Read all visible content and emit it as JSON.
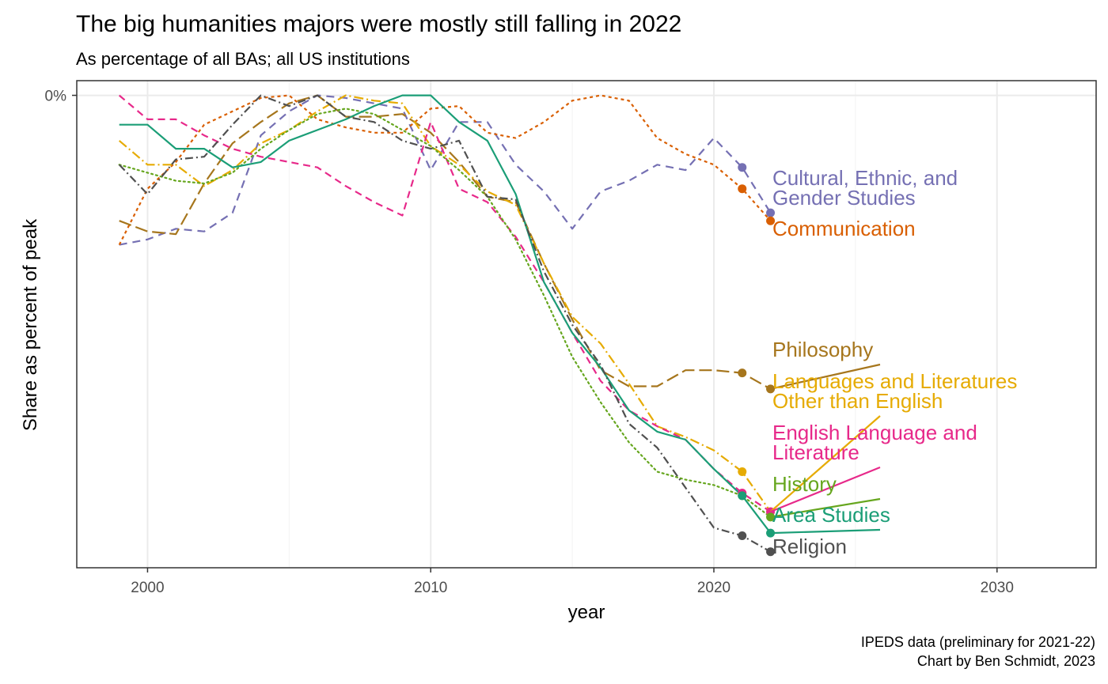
{
  "chart_data": {
    "type": "line",
    "title": "The big humanities majors were mostly still falling in 2022",
    "subtitle": "As percentage of all BAs; all US institutions",
    "xlabel": "year",
    "ylabel": "Share as percent of peak",
    "caption_lines": [
      "IPEDS data (preliminary for 2021-22)",
      "Chart by Ben Schmidt, 2023"
    ],
    "xlim": [
      1997.5,
      2033.5
    ],
    "ylim": [
      -17.7,
      0.55
    ],
    "x_ticks": [
      2000,
      2010,
      2020,
      2030
    ],
    "x_tick_labels": [
      "2000",
      "2010",
      "2020",
      "2030"
    ],
    "y_ticks": [
      0
    ],
    "y_tick_labels": [
      "0%"
    ],
    "grid": true,
    "legend": "none (direct labels at line ends)",
    "series": [
      {
        "name": "Cultural, Ethnic, and Gender Studies",
        "label_lines": [
          "Cultural, Ethnic, and",
          "Gender Studies"
        ],
        "color": "#7570b3",
        "dash": "10,7",
        "x": [
          1999,
          2000,
          2001,
          2002,
          2003,
          2004,
          2005,
          2006,
          2007,
          2008,
          2009,
          2010,
          2011,
          2012,
          2013,
          2014,
          2015,
          2016,
          2017,
          2018,
          2019,
          2020,
          2021,
          2022
        ],
        "y": [
          -5.6,
          -5.4,
          -5.0,
          -5.1,
          -4.4,
          -1.5,
          -0.6,
          0,
          -0.1,
          -0.3,
          -0.5,
          -2.8,
          -1.0,
          -1.0,
          -2.6,
          -3.6,
          -5.0,
          -3.6,
          -3.2,
          -2.6,
          -2.8,
          -1.6,
          -2.7,
          -4.4
        ]
      },
      {
        "name": "Communication",
        "label_lines": [
          "Communication"
        ],
        "color": "#d95f02",
        "dash": "4,4",
        "x": [
          1999,
          2000,
          2001,
          2002,
          2003,
          2004,
          2005,
          2006,
          2007,
          2008,
          2009,
          2010,
          2011,
          2012,
          2013,
          2014,
          2015,
          2016,
          2017,
          2018,
          2019,
          2020,
          2021,
          2022
        ],
        "y": [
          -5.6,
          -3.5,
          -2.5,
          -1.1,
          -0.6,
          -0.1,
          0,
          -0.9,
          -1.2,
          -1.4,
          -1.4,
          -0.5,
          -0.4,
          -1.4,
          -1.6,
          -1.0,
          -0.2,
          0,
          -0.2,
          -1.6,
          -2.2,
          -2.6,
          -3.5,
          -4.7
        ]
      },
      {
        "name": "Philosophy",
        "label_lines": [
          "Philosophy"
        ],
        "color": "#a6761d",
        "dash": "16,6",
        "x": [
          1999,
          2000,
          2001,
          2002,
          2003,
          2004,
          2005,
          2006,
          2007,
          2008,
          2009,
          2010,
          2011,
          2012,
          2013,
          2014,
          2015,
          2016,
          2017,
          2018,
          2019,
          2020,
          2021,
          2022
        ],
        "y": [
          -4.7,
          -5.1,
          -5.2,
          -3.3,
          -1.8,
          -1.0,
          -0.3,
          0,
          -0.8,
          -0.8,
          -0.7,
          -1.4,
          -2.5,
          -3.8,
          -4.0,
          -6.3,
          -8.4,
          -10.3,
          -10.9,
          -10.9,
          -10.3,
          -10.3,
          -10.4,
          -11.0
        ]
      },
      {
        "name": "Languages and Literatures Other than English",
        "label_lines": [
          "Languages and Literatures",
          "Other than English"
        ],
        "color": "#e6ab02",
        "dash": "12,4,2,4",
        "x": [
          1999,
          2000,
          2001,
          2002,
          2003,
          2004,
          2005,
          2006,
          2007,
          2008,
          2009,
          2010,
          2011,
          2012,
          2013,
          2014,
          2015,
          2016,
          2017,
          2018,
          2019,
          2020,
          2021,
          2022
        ],
        "y": [
          -1.7,
          -2.6,
          -2.6,
          -3.4,
          -2.8,
          -1.8,
          -1.3,
          -0.6,
          0,
          -0.2,
          -0.3,
          -1.9,
          -2.6,
          -3.6,
          -4.1,
          -6.3,
          -8.3,
          -9.3,
          -10.8,
          -12.4,
          -12.8,
          -13.3,
          -14.1,
          -15.6
        ]
      },
      {
        "name": "English Language and Literature",
        "label_lines": [
          "English Language and",
          "Literature"
        ],
        "color": "#e7298a",
        "dash": "9,6",
        "x": [
          1999,
          2000,
          2001,
          2002,
          2003,
          2004,
          2005,
          2006,
          2007,
          2008,
          2009,
          2010,
          2011,
          2012,
          2013,
          2014,
          2015,
          2016,
          2017,
          2018,
          2019,
          2020,
          2021,
          2022
        ],
        "y": [
          0,
          -0.9,
          -0.9,
          -1.5,
          -2.0,
          -2.3,
          -2.5,
          -2.7,
          -3.4,
          -4.0,
          -4.5,
          -1.0,
          -3.5,
          -4.0,
          -5.3,
          -7.0,
          -8.9,
          -10.7,
          -11.8,
          -12.4,
          -12.9,
          -14.0,
          -14.9,
          -15.6
        ]
      },
      {
        "name": "History",
        "label_lines": [
          "History"
        ],
        "color": "#66a61e",
        "dash": "2,4",
        "x": [
          1999,
          2000,
          2001,
          2002,
          2003,
          2004,
          2005,
          2006,
          2007,
          2008,
          2009,
          2010,
          2011,
          2012,
          2013,
          2014,
          2015,
          2016,
          2017,
          2018,
          2019,
          2020,
          2021,
          2022
        ],
        "y": [
          -2.6,
          -2.9,
          -3.2,
          -3.3,
          -2.9,
          -2.0,
          -1.3,
          -0.7,
          -0.5,
          -0.7,
          -1.3,
          -1.9,
          -2.8,
          -3.8,
          -5.4,
          -7.5,
          -9.8,
          -11.5,
          -13.0,
          -14.1,
          -14.4,
          -14.6,
          -15.0,
          -15.8
        ]
      },
      {
        "name": "Area Studies",
        "label_lines": [
          "Area Studies"
        ],
        "color": "#1b9e77",
        "dash": "",
        "x": [
          1999,
          2000,
          2001,
          2002,
          2003,
          2004,
          2005,
          2006,
          2007,
          2008,
          2009,
          2010,
          2011,
          2012,
          2013,
          2014,
          2015,
          2016,
          2017,
          2018,
          2019,
          2020,
          2021,
          2022
        ],
        "y": [
          -1.1,
          -1.1,
          -2.0,
          -2.0,
          -2.7,
          -2.5,
          -1.7,
          -1.3,
          -0.9,
          -0.4,
          0,
          0,
          -1.0,
          -1.7,
          -3.7,
          -7.0,
          -8.9,
          -10.2,
          -11.8,
          -12.6,
          -12.9,
          -14.0,
          -15.0,
          -16.4
        ]
      },
      {
        "name": "Religion",
        "label_lines": [
          "Religion"
        ],
        "color": "#505050",
        "dash": "10,4,2,4",
        "x": [
          1999,
          2000,
          2001,
          2002,
          2003,
          2004,
          2005,
          2006,
          2007,
          2008,
          2009,
          2010,
          2011,
          2012,
          2013,
          2014,
          2015,
          2016,
          2017,
          2018,
          2019,
          2020,
          2021,
          2022
        ],
        "y": [
          -2.6,
          -3.7,
          -2.4,
          -2.3,
          -1.1,
          0,
          -0.4,
          0,
          -0.8,
          -1.0,
          -1.7,
          -2.0,
          -1.7,
          -3.8,
          -3.9,
          -6.6,
          -8.6,
          -10.1,
          -12.3,
          -13.2,
          -14.7,
          -16.2,
          -16.5,
          -17.1
        ]
      }
    ]
  }
}
